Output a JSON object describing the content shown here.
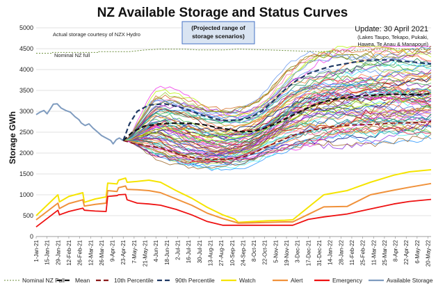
{
  "chart_data": {
    "type": "line",
    "title": "NZ Available Storage and Status Curves",
    "ylabel": "Storage GWh",
    "ylim": [
      0,
      5000
    ],
    "yticks": [
      0,
      500,
      1000,
      1500,
      2000,
      2500,
      3000,
      3500,
      4000,
      4500,
      5000
    ],
    "grid": true,
    "legend_position": "bottom",
    "xticks": [
      "1-Jan-21",
      "15-Jan-21",
      "29-Jan-21",
      "12-Feb-21",
      "26-Feb-21",
      "12-Mar-21",
      "26-Mar-21",
      "9-Apr-21",
      "23-Apr-21",
      "7-May-21",
      "21-May-21",
      "4-Jun-21",
      "18-Jun-21",
      "2-Jul-21",
      "16-Jul-21",
      "30-Jul-21",
      "13-Aug-21",
      "27-Aug-21",
      "10-Sep-21",
      "24-Sep-21",
      "8-Oct-21",
      "22-Oct-21",
      "5-Nov-21",
      "19-Nov-21",
      "3-Dec-21",
      "17-Dec-21",
      "31-Dec-21",
      "14-Jan-22",
      "28-Jan-22",
      "11-Feb-22",
      "25-Feb-22",
      "11-Mar-22",
      "25-Mar-22",
      "8-Apr-22",
      "22-Apr-22",
      "6-May-22",
      "20-May-22"
    ],
    "annotations": {
      "source": "Actual storage courtesy of NZX Hydro",
      "nominal_full_label": "Nominal NZ full",
      "box": [
        "(Projected range of",
        "storage scenarios)"
      ],
      "update": "Update: 30 April 2021",
      "lakes": [
        "(Lakes Taupo, Tekapo, Pukaki,",
        "Hawea, Te Anau & Manapouri)"
      ]
    },
    "colors": {
      "nominal": "#6b8e3a",
      "mean": "#111111",
      "p10": "#8b1a1a",
      "p90": "#1f3864",
      "watch": "#f5e400",
      "alert": "#f0913a",
      "emergency": "#ee1111",
      "available": "#7e9bbf",
      "box_fill": "#d9e4f2",
      "box_stroke": "#4472c4"
    },
    "series": [
      {
        "name": "Nominal NZ Full",
        "key": "nominal",
        "style": "dotted",
        "points": [
          [
            0,
            4390
          ],
          [
            21,
            4390
          ],
          [
            21,
            4410
          ],
          [
            80,
            4410
          ],
          [
            80,
            4430
          ],
          [
            120,
            4430
          ],
          [
            130,
            4450
          ],
          [
            140,
            4470
          ],
          [
            160,
            4490
          ],
          [
            190,
            4490
          ],
          [
            210,
            4470
          ],
          [
            240,
            4470
          ],
          [
            260,
            4490
          ],
          [
            300,
            4470
          ],
          [
            330,
            4450
          ],
          [
            365,
            4430
          ],
          [
            400,
            4450
          ],
          [
            420,
            4470
          ],
          [
            460,
            4500
          ],
          [
            500,
            4480
          ],
          [
            508,
            4470
          ]
        ]
      },
      {
        "name": "Mean",
        "key": "mean",
        "style": "dashed",
        "points": [
          [
            112,
            2300
          ],
          [
            125,
            2520
          ],
          [
            140,
            2650
          ],
          [
            160,
            2700
          ],
          [
            180,
            2720
          ],
          [
            200,
            2710
          ],
          [
            215,
            2680
          ],
          [
            230,
            2620
          ],
          [
            250,
            2560
          ],
          [
            265,
            2510
          ],
          [
            280,
            2520
          ],
          [
            295,
            2600
          ],
          [
            310,
            2720
          ],
          [
            325,
            2860
          ],
          [
            340,
            3000
          ],
          [
            355,
            3130
          ],
          [
            370,
            3230
          ],
          [
            385,
            3290
          ],
          [
            400,
            3330
          ],
          [
            415,
            3370
          ],
          [
            430,
            3380
          ],
          [
            445,
            3400
          ],
          [
            460,
            3410
          ],
          [
            475,
            3400
          ],
          [
            490,
            3400
          ],
          [
            508,
            3420
          ]
        ]
      },
      {
        "name": "10th Percentile",
        "key": "p10",
        "style": "dashed",
        "points": [
          [
            112,
            2300
          ],
          [
            125,
            2230
          ],
          [
            140,
            2180
          ],
          [
            160,
            2130
          ],
          [
            175,
            2020
          ],
          [
            190,
            1930
          ],
          [
            205,
            1880
          ],
          [
            220,
            1850
          ],
          [
            235,
            1850
          ],
          [
            250,
            1860
          ],
          [
            265,
            1900
          ],
          [
            280,
            2000
          ],
          [
            295,
            2140
          ],
          [
            310,
            2260
          ],
          [
            325,
            2380
          ],
          [
            340,
            2480
          ],
          [
            355,
            2550
          ],
          [
            370,
            2600
          ],
          [
            385,
            2640
          ],
          [
            400,
            2660
          ],
          [
            415,
            2680
          ],
          [
            430,
            2680
          ],
          [
            445,
            2700
          ],
          [
            460,
            2720
          ],
          [
            475,
            2720
          ],
          [
            490,
            2730
          ],
          [
            508,
            2750
          ]
        ]
      },
      {
        "name": "90th Percentile",
        "key": "p90",
        "style": "dashed",
        "points": [
          [
            112,
            2300
          ],
          [
            120,
            2700
          ],
          [
            130,
            3000
          ],
          [
            145,
            3150
          ],
          [
            165,
            3180
          ],
          [
            185,
            3100
          ],
          [
            200,
            3000
          ],
          [
            215,
            2900
          ],
          [
            230,
            2820
          ],
          [
            245,
            2780
          ],
          [
            260,
            2790
          ],
          [
            275,
            2850
          ],
          [
            290,
            3000
          ],
          [
            305,
            3250
          ],
          [
            320,
            3520
          ],
          [
            335,
            3740
          ],
          [
            350,
            3900
          ],
          [
            365,
            4000
          ],
          [
            380,
            4080
          ],
          [
            395,
            4130
          ],
          [
            410,
            4180
          ],
          [
            425,
            4220
          ],
          [
            440,
            4230
          ],
          [
            455,
            4230
          ],
          [
            470,
            4200
          ],
          [
            485,
            4180
          ],
          [
            500,
            4150
          ],
          [
            508,
            4140
          ]
        ]
      },
      {
        "name": "Watch",
        "key": "watch",
        "style": "solid",
        "points": [
          [
            0,
            500
          ],
          [
            28,
            1000
          ],
          [
            30,
            830
          ],
          [
            42,
            960
          ],
          [
            60,
            1050
          ],
          [
            62,
            820
          ],
          [
            76,
            900
          ],
          [
            90,
            950
          ],
          [
            92,
            1280
          ],
          [
            104,
            1260
          ],
          [
            106,
            1350
          ],
          [
            115,
            1400
          ],
          [
            117,
            1300
          ],
          [
            130,
            1320
          ],
          [
            145,
            1350
          ],
          [
            160,
            1300
          ],
          [
            180,
            1100
          ],
          [
            200,
            920
          ],
          [
            220,
            700
          ],
          [
            240,
            520
          ],
          [
            255,
            420
          ],
          [
            260,
            340
          ],
          [
            280,
            360
          ],
          [
            300,
            380
          ],
          [
            320,
            390
          ],
          [
            330,
            400
          ],
          [
            350,
            700
          ],
          [
            370,
            1000
          ],
          [
            400,
            1100
          ],
          [
            430,
            1300
          ],
          [
            460,
            1470
          ],
          [
            480,
            1550
          ],
          [
            508,
            1600
          ]
        ]
      },
      {
        "name": "Alert",
        "key": "alert",
        "style": "solid",
        "points": [
          [
            0,
            400
          ],
          [
            28,
            800
          ],
          [
            30,
            670
          ],
          [
            42,
            790
          ],
          [
            60,
            880
          ],
          [
            62,
            730
          ],
          [
            76,
            770
          ],
          [
            90,
            800
          ],
          [
            92,
            1100
          ],
          [
            104,
            1080
          ],
          [
            106,
            1170
          ],
          [
            115,
            1210
          ],
          [
            117,
            1130
          ],
          [
            130,
            1120
          ],
          [
            145,
            1100
          ],
          [
            160,
            1050
          ],
          [
            180,
            900
          ],
          [
            200,
            750
          ],
          [
            220,
            560
          ],
          [
            240,
            430
          ],
          [
            255,
            350
          ],
          [
            260,
            320
          ],
          [
            280,
            330
          ],
          [
            300,
            340
          ],
          [
            320,
            350
          ],
          [
            330,
            350
          ],
          [
            350,
            530
          ],
          [
            370,
            710
          ],
          [
            400,
            720
          ],
          [
            430,
            1000
          ],
          [
            460,
            1110
          ],
          [
            480,
            1180
          ],
          [
            508,
            1270
          ]
        ]
      },
      {
        "name": "Emergency",
        "key": "emergency",
        "style": "solid",
        "points": [
          [
            0,
            230
          ],
          [
            28,
            630
          ],
          [
            30,
            520
          ],
          [
            42,
            600
          ],
          [
            60,
            680
          ],
          [
            62,
            630
          ],
          [
            76,
            610
          ],
          [
            90,
            600
          ],
          [
            92,
            960
          ],
          [
            104,
            980
          ],
          [
            106,
            1000
          ],
          [
            115,
            1010
          ],
          [
            117,
            880
          ],
          [
            130,
            800
          ],
          [
            145,
            780
          ],
          [
            160,
            750
          ],
          [
            180,
            650
          ],
          [
            200,
            520
          ],
          [
            220,
            360
          ],
          [
            240,
            270
          ],
          [
            260,
            270
          ],
          [
            280,
            270
          ],
          [
            300,
            270
          ],
          [
            320,
            270
          ],
          [
            330,
            270
          ],
          [
            350,
            410
          ],
          [
            370,
            470
          ],
          [
            400,
            540
          ],
          [
            430,
            660
          ],
          [
            460,
            780
          ],
          [
            480,
            840
          ],
          [
            508,
            890
          ]
        ]
      },
      {
        "name": "Available Storage",
        "key": "available",
        "style": "solid",
        "points": [
          [
            0,
            2920
          ],
          [
            5,
            2980
          ],
          [
            10,
            3020
          ],
          [
            14,
            2940
          ],
          [
            18,
            3050
          ],
          [
            22,
            3170
          ],
          [
            27,
            3180
          ],
          [
            32,
            3080
          ],
          [
            38,
            3020
          ],
          [
            44,
            2980
          ],
          [
            50,
            2870
          ],
          [
            55,
            2800
          ],
          [
            58,
            2720
          ],
          [
            63,
            2660
          ],
          [
            68,
            2700
          ],
          [
            73,
            2600
          ],
          [
            78,
            2520
          ],
          [
            84,
            2420
          ],
          [
            88,
            2380
          ],
          [
            92,
            2340
          ],
          [
            96,
            2300
          ],
          [
            99,
            2220
          ],
          [
            103,
            2320
          ],
          [
            107,
            2360
          ],
          [
            112,
            2300
          ]
        ]
      }
    ],
    "scenario_count": 80,
    "scenario_start": [
      112,
      2300
    ]
  },
  "legend": [
    {
      "label": "Nominal NZ Full",
      "key": "nominal",
      "style": "dotted"
    },
    {
      "label": "Mean",
      "key": "mean",
      "style": "dashed"
    },
    {
      "label": "10th Percentile",
      "key": "p10",
      "style": "dashed"
    },
    {
      "label": "90th Percentile",
      "key": "p90",
      "style": "dashed"
    },
    {
      "label": "Watch",
      "key": "watch",
      "style": "solid"
    },
    {
      "label": "Alert",
      "key": "alert",
      "style": "solid"
    },
    {
      "label": "Emergency",
      "key": "emergency",
      "style": "solid"
    },
    {
      "label": "Available Storage",
      "key": "available",
      "style": "solid"
    }
  ]
}
